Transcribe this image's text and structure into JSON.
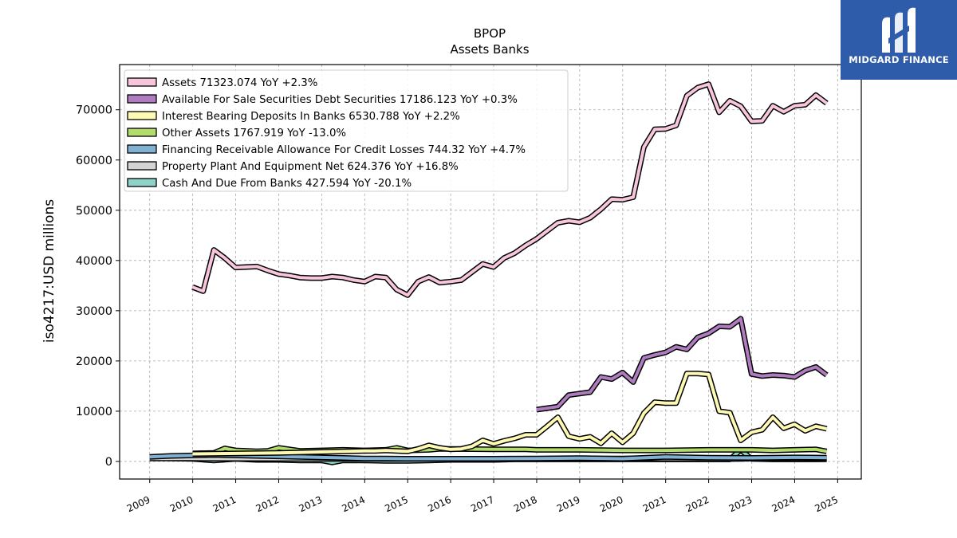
{
  "brand": {
    "name": "MIDGARD FINANCE",
    "color": "#2f5bab"
  },
  "chart_data": {
    "type": "line",
    "title": "BPOP",
    "subtitle": "Assets Banks",
    "xlabel": "",
    "ylabel": "iso4217:USD  millions",
    "xlim": [
      2008.3,
      2025.55
    ],
    "ylim": [
      -3500,
      79000
    ],
    "x_ticks": [
      "2009",
      "2010",
      "2011",
      "2012",
      "2013",
      "2014",
      "2015",
      "2016",
      "2017",
      "2018",
      "2019",
      "2020",
      "2021",
      "2022",
      "2023",
      "2024",
      "2025"
    ],
    "y_ticks": [
      "0",
      "10000",
      "20000",
      "30000",
      "40000",
      "50000",
      "60000",
      "70000"
    ],
    "grid": true,
    "legend_position": "top-left",
    "series": [
      {
        "name": "Assets",
        "legend_label": "Assets  71323.074 YoY +2.3%",
        "color": "#f7c6dc",
        "x": [
          "2009-12-31",
          "2010-03-31",
          "2010-06-30",
          "2010-09-30",
          "2010-12-31",
          "2011-03-31",
          "2011-06-30",
          "2011-09-30",
          "2011-12-31",
          "2012-03-31",
          "2012-06-30",
          "2012-09-30",
          "2012-12-31",
          "2013-03-31",
          "2013-06-30",
          "2013-09-30",
          "2013-12-31",
          "2014-03-31",
          "2014-06-30",
          "2014-09-30",
          "2014-12-31",
          "2015-03-31",
          "2015-06-30",
          "2015-09-30",
          "2015-12-31",
          "2016-03-31",
          "2016-06-30",
          "2016-09-30",
          "2016-12-31",
          "2017-03-31",
          "2017-06-30",
          "2017-09-30",
          "2017-12-31",
          "2018-03-31",
          "2018-06-30",
          "2018-09-30",
          "2018-12-31",
          "2019-03-31",
          "2019-06-30",
          "2019-09-30",
          "2019-12-31",
          "2020-03-31",
          "2020-06-30",
          "2020-09-30",
          "2020-12-31",
          "2021-03-31",
          "2021-06-30",
          "2021-09-30",
          "2021-12-31",
          "2022-03-31",
          "2022-06-30",
          "2022-09-30",
          "2022-12-31",
          "2023-03-31",
          "2023-06-30",
          "2023-09-30",
          "2023-12-31",
          "2024-03-31",
          "2024-06-30",
          "2024-09-30"
        ],
        "y": [
          34700,
          33900,
          42100,
          40500,
          38600,
          38700,
          38800,
          38000,
          37300,
          37000,
          36600,
          36500,
          36500,
          36800,
          36600,
          36100,
          35800,
          36800,
          36600,
          34200,
          33100,
          35800,
          36700,
          35600,
          35800,
          36100,
          37700,
          39300,
          38700,
          40500,
          41500,
          43000,
          44300,
          45900,
          47500,
          47900,
          47600,
          48500,
          50200,
          52200,
          52100,
          52600,
          62600,
          66100,
          66200,
          66900,
          72800,
          74400,
          75100,
          69500,
          71800,
          70700,
          67700,
          67800,
          70800,
          69600,
          70800,
          71000,
          72900,
          71300
        ]
      },
      {
        "name": "Available For Sale Securities Debt Securities",
        "legend_label": "Available For Sale Securities Debt Securities  17186.123 YoY +0.3%",
        "color": "#b07cc0",
        "x": [
          "2017-12-31",
          "2018-03-31",
          "2018-06-30",
          "2018-09-30",
          "2018-12-31",
          "2019-03-31",
          "2019-06-30",
          "2019-09-30",
          "2019-12-31",
          "2020-03-31",
          "2020-06-30",
          "2020-09-30",
          "2020-12-31",
          "2021-03-31",
          "2021-06-30",
          "2021-09-30",
          "2021-12-31",
          "2022-03-31",
          "2022-06-30",
          "2022-09-30",
          "2022-12-31",
          "2023-03-31",
          "2023-06-30",
          "2023-09-30",
          "2023-12-31",
          "2024-03-31",
          "2024-06-30",
          "2024-09-30"
        ],
        "y": [
          10300,
          10600,
          10900,
          13200,
          13500,
          13800,
          16800,
          16400,
          17700,
          15800,
          20600,
          21200,
          21700,
          22800,
          22300,
          24700,
          25500,
          26900,
          26800,
          28400,
          17400,
          17000,
          17200,
          17100,
          16800,
          18100,
          18800,
          17200
        ]
      },
      {
        "name": "Interest Bearing Deposits In Banks",
        "legend_label": "Interest Bearing Deposits In Banks  6530.788 YoY +2.2%",
        "color": "#fefab4",
        "x": [
          "2009-12-31",
          "2010-12-31",
          "2011-12-31",
          "2012-12-31",
          "2013-12-31",
          "2014-03-31",
          "2014-06-30",
          "2014-09-30",
          "2014-12-31",
          "2015-03-31",
          "2015-06-30",
          "2015-09-30",
          "2015-12-31",
          "2016-03-31",
          "2016-06-30",
          "2016-09-30",
          "2016-12-31",
          "2017-03-31",
          "2017-06-30",
          "2017-09-30",
          "2017-12-31",
          "2018-03-31",
          "2018-06-30",
          "2018-09-30",
          "2018-12-31",
          "2019-03-31",
          "2019-06-30",
          "2019-09-30",
          "2019-12-31",
          "2020-03-31",
          "2020-06-30",
          "2020-09-30",
          "2020-12-31",
          "2021-03-31",
          "2021-06-30",
          "2021-09-30",
          "2021-12-31",
          "2022-03-31",
          "2022-06-30",
          "2022-09-30",
          "2022-12-31",
          "2023-03-31",
          "2023-06-30",
          "2023-09-30",
          "2023-12-31",
          "2024-03-31",
          "2024-06-30",
          "2024-09-30"
        ],
        "y": [
          1500,
          1600,
          1700,
          1900,
          2100,
          2100,
          2200,
          2100,
          2000,
          2500,
          3200,
          2700,
          2400,
          2500,
          3000,
          4200,
          3500,
          4100,
          4600,
          5300,
          5300,
          7000,
          8800,
          5000,
          4500,
          4900,
          3600,
          5600,
          3800,
          5600,
          9600,
          11800,
          11600,
          11600,
          17500,
          17500,
          17300,
          10000,
          9700,
          4200,
          5800,
          6300,
          8800,
          6600,
          7400,
          6100,
          7000,
          6500
        ]
      },
      {
        "name": "Other Assets",
        "legend_label": "Other Assets  1767.919 YoY -13.0%",
        "color": "#b3dc6c",
        "x": [
          "2009-12-31",
          "2010-06-30",
          "2010-09-30",
          "2010-12-31",
          "2011-06-30",
          "2011-09-30",
          "2011-12-31",
          "2012-06-30",
          "2012-12-31",
          "2013-06-30",
          "2013-12-31",
          "2014-06-30",
          "2014-09-30",
          "2014-12-31",
          "2015-06-30",
          "2015-09-30",
          "2015-12-31",
          "2016-12-31",
          "2017-09-30",
          "2017-12-31",
          "2018-12-31",
          "2019-12-31",
          "2020-12-31",
          "2021-12-31",
          "2022-12-31",
          "2023-06-30",
          "2023-12-31",
          "2024-06-30",
          "2024-09-30"
        ],
        "y": [
          1600,
          1700,
          2600,
          2200,
          2000,
          2100,
          2700,
          2100,
          2200,
          2300,
          2200,
          2300,
          2700,
          2200,
          2300,
          2500,
          2500,
          2400,
          2400,
          2300,
          2300,
          2200,
          2200,
          2300,
          2300,
          2200,
          2300,
          2400,
          2000
        ]
      },
      {
        "name": "Financing Receivable Allowance For Credit Losses",
        "legend_label": "Financing Receivable Allowance For Credit Losses  744.32 YoY +4.7%",
        "color": "#80b1d3",
        "x": [
          "2008-12-31",
          "2009-06-30",
          "2009-12-31",
          "2010-06-30",
          "2010-12-31",
          "2011-06-30",
          "2011-12-31",
          "2012-06-30",
          "2012-12-31",
          "2013-06-30",
          "2013-12-31",
          "2014-06-30",
          "2014-12-31",
          "2015-12-31",
          "2016-12-31",
          "2017-12-31",
          "2018-12-31",
          "2019-12-31",
          "2020-12-31",
          "2021-12-31",
          "2022-12-31",
          "2023-12-31",
          "2024-09-30"
        ],
        "y": [
          900,
          1100,
          1200,
          1300,
          1200,
          1100,
          1000,
          900,
          800,
          700,
          600,
          600,
          550,
          550,
          550,
          600,
          650,
          550,
          900,
          750,
          700,
          800,
          750
        ]
      },
      {
        "name": "Property Plant And Equipment Net",
        "legend_label": "Property Plant And Equipment Net  624.376 YoY +16.8%",
        "color": "#d4d4d4",
        "x": [
          "2008-12-31",
          "2009-12-31",
          "2010-12-31",
          "2011-12-31",
          "2012-12-31",
          "2013-12-31",
          "2014-12-31",
          "2015-12-31",
          "2016-12-31",
          "2017-12-31",
          "2018-12-31",
          "2019-12-31",
          "2020-12-31",
          "2021-12-31",
          "2022-06-30",
          "2022-09-30",
          "2022-12-31",
          "2023-12-31",
          "2024-09-30"
        ],
        "y": [
          600,
          580,
          550,
          530,
          510,
          510,
          500,
          510,
          550,
          550,
          560,
          570,
          550,
          500,
          480,
          500,
          560,
          580,
          620
        ]
      },
      {
        "name": "Cash And Due From Banks",
        "legend_label": "Cash And Due From Banks  427.594 YoY -20.1%",
        "color": "#8dd3c7",
        "x": [
          "2008-12-31",
          "2009-12-31",
          "2010-06-30",
          "2010-12-31",
          "2011-06-30",
          "2011-12-31",
          "2012-06-30",
          "2012-12-31",
          "2013-03-31",
          "2013-06-30",
          "2013-12-31",
          "2014-06-30",
          "2014-12-31",
          "2015-06-30",
          "2015-12-31",
          "2016-06-30",
          "2016-12-31",
          "2017-06-30",
          "2017-12-31",
          "2018-06-30",
          "2018-12-31",
          "2019-06-30",
          "2019-12-31",
          "2020-06-30",
          "2020-12-31",
          "2021-06-30",
          "2021-12-31",
          "2022-06-30",
          "2022-09-30",
          "2022-12-31",
          "2023-06-30",
          "2023-12-31",
          "2024-06-30",
          "2024-09-30"
        ],
        "y": [
          700,
          500,
          200,
          500,
          300,
          300,
          200,
          200,
          -200,
          200,
          200,
          100,
          100,
          200,
          300,
          300,
          300,
          400,
          400,
          400,
          400,
          400,
          400,
          400,
          400,
          400,
          400,
          400,
          2300,
          500,
          400,
          400,
          400,
          430
        ]
      }
    ]
  }
}
